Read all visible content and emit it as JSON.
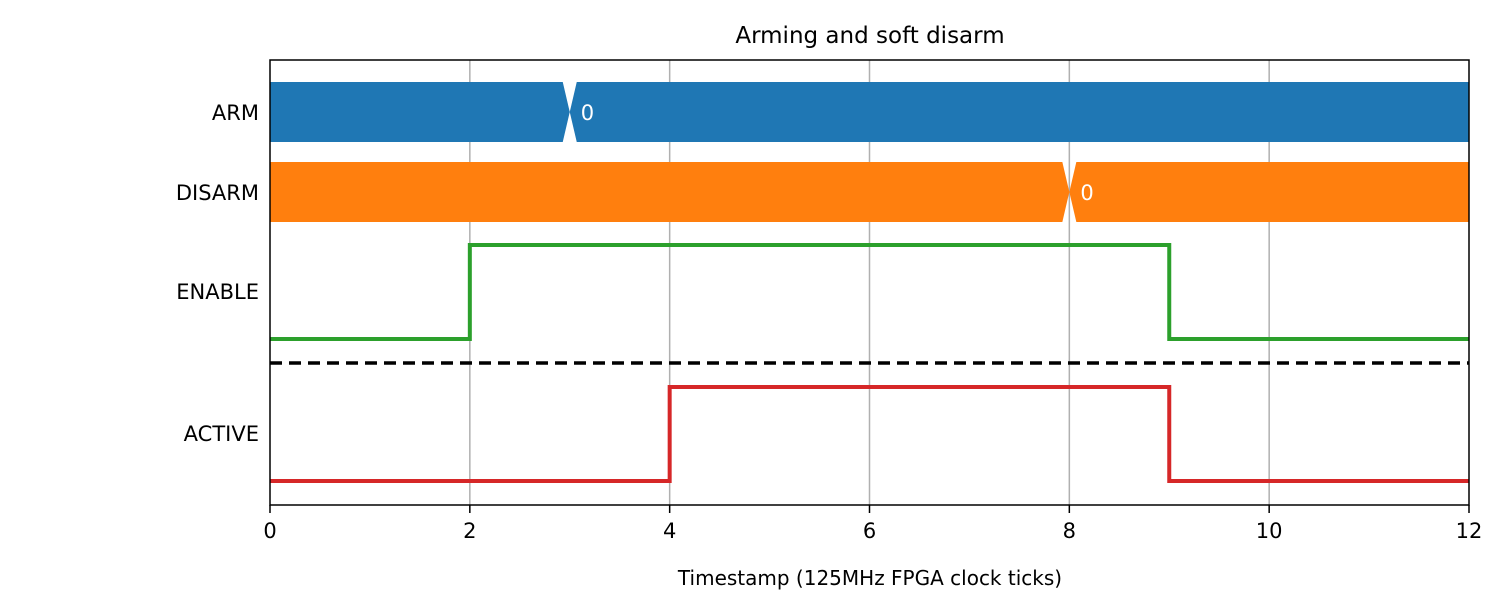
{
  "chart_data": {
    "type": "timing",
    "title": "Arming and soft disarm",
    "xlabel": "Timestamp (125MHz FPGA clock ticks)",
    "ylabel": "",
    "xlim": [
      0,
      12
    ],
    "xticks": [
      "0",
      "2",
      "4",
      "6",
      "8",
      "10",
      "12"
    ],
    "grid": "vertical",
    "series": [
      {
        "name": "ARM",
        "kind": "bus",
        "color": "#1f77b4",
        "transitions": [
          3
        ],
        "labels": [
          {
            "x": 3,
            "text": "0"
          }
        ]
      },
      {
        "name": "DISARM",
        "kind": "bus",
        "color": "#ff7f0e",
        "transitions": [
          8
        ],
        "labels": [
          {
            "x": 8,
            "text": "0"
          }
        ]
      },
      {
        "name": "ENABLE",
        "kind": "digital",
        "color": "#2ca02c",
        "points": [
          [
            0,
            0
          ],
          [
            2,
            1
          ],
          [
            9,
            0
          ],
          [
            12,
            0
          ]
        ]
      },
      {
        "name": "ACTIVE",
        "kind": "digital",
        "color": "#d62728",
        "points": [
          [
            0,
            0
          ],
          [
            4,
            1
          ],
          [
            9,
            0
          ],
          [
            12,
            0
          ]
        ]
      }
    ],
    "separator": {
      "after": "ENABLE",
      "style": "dashed"
    }
  }
}
